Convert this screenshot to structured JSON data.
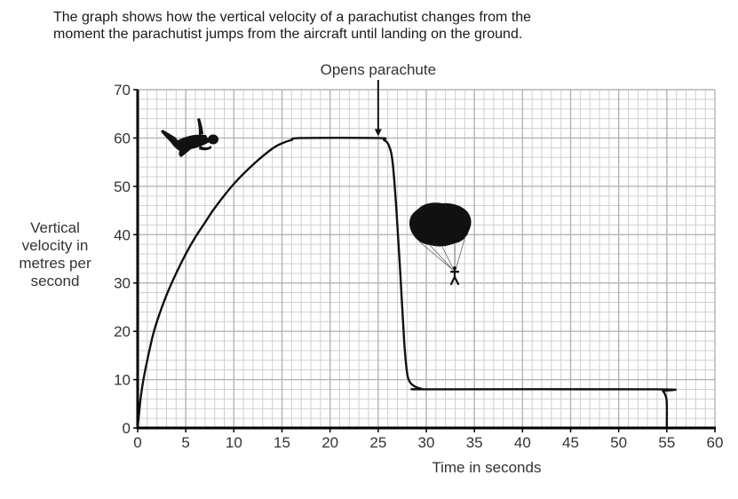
{
  "intro": {
    "line1": "The graph shows how the vertical velocity of a parachutist changes from the",
    "line2": "moment the parachutist jumps from the aircraft until landing on the ground."
  },
  "chart_data": {
    "type": "line",
    "title": "",
    "xlabel": "Time in seconds",
    "ylabel_lines": [
      "Vertical",
      "velocity in",
      "metres per",
      "second"
    ],
    "xlim": [
      0,
      60
    ],
    "ylim": [
      0,
      70
    ],
    "xticks": [
      0,
      5,
      10,
      15,
      20,
      25,
      30,
      35,
      40,
      45,
      50,
      55,
      60
    ],
    "yticks": [
      0,
      10,
      20,
      30,
      40,
      50,
      60,
      70
    ],
    "xtick_labels": [
      "0",
      "5",
      "10",
      "15",
      "20",
      "25",
      "30",
      "35",
      "40",
      "45",
      "50",
      "55",
      "60"
    ],
    "ytick_labels": [
      "0",
      "10",
      "20",
      "30",
      "40",
      "50",
      "60",
      "70"
    ],
    "grid": {
      "on": true,
      "x_minor_step": 1,
      "y_minor_step": 2
    },
    "annotation": {
      "text": "Opens parachute",
      "x": 25,
      "y": 60
    },
    "series": [
      {
        "name": "Vertical velocity",
        "color": "#111111",
        "x": [
          0,
          0.3,
          0.6,
          1,
          1.5,
          2,
          3,
          4,
          5,
          6,
          7,
          8,
          10,
          12,
          14,
          15,
          16,
          17,
          25,
          25.6,
          26.1,
          26.5,
          26.9,
          27.3,
          27.7,
          28.0,
          28.3,
          28.8,
          29.5,
          30.5,
          54,
          54.6,
          54.9,
          55,
          55
        ],
        "y": [
          0,
          6,
          10,
          14,
          18.5,
          22,
          27.5,
          32,
          36,
          39.5,
          42.5,
          45.5,
          50.5,
          54.5,
          57.8,
          58.9,
          59.6,
          60,
          60,
          59.6,
          58.5,
          55,
          45,
          32,
          18,
          11.5,
          9.5,
          8.6,
          8.1,
          8,
          8,
          7.6,
          6.5,
          5,
          0
        ]
      }
    ],
    "images": [
      "skydiver-icon",
      "parachute-icon"
    ]
  }
}
